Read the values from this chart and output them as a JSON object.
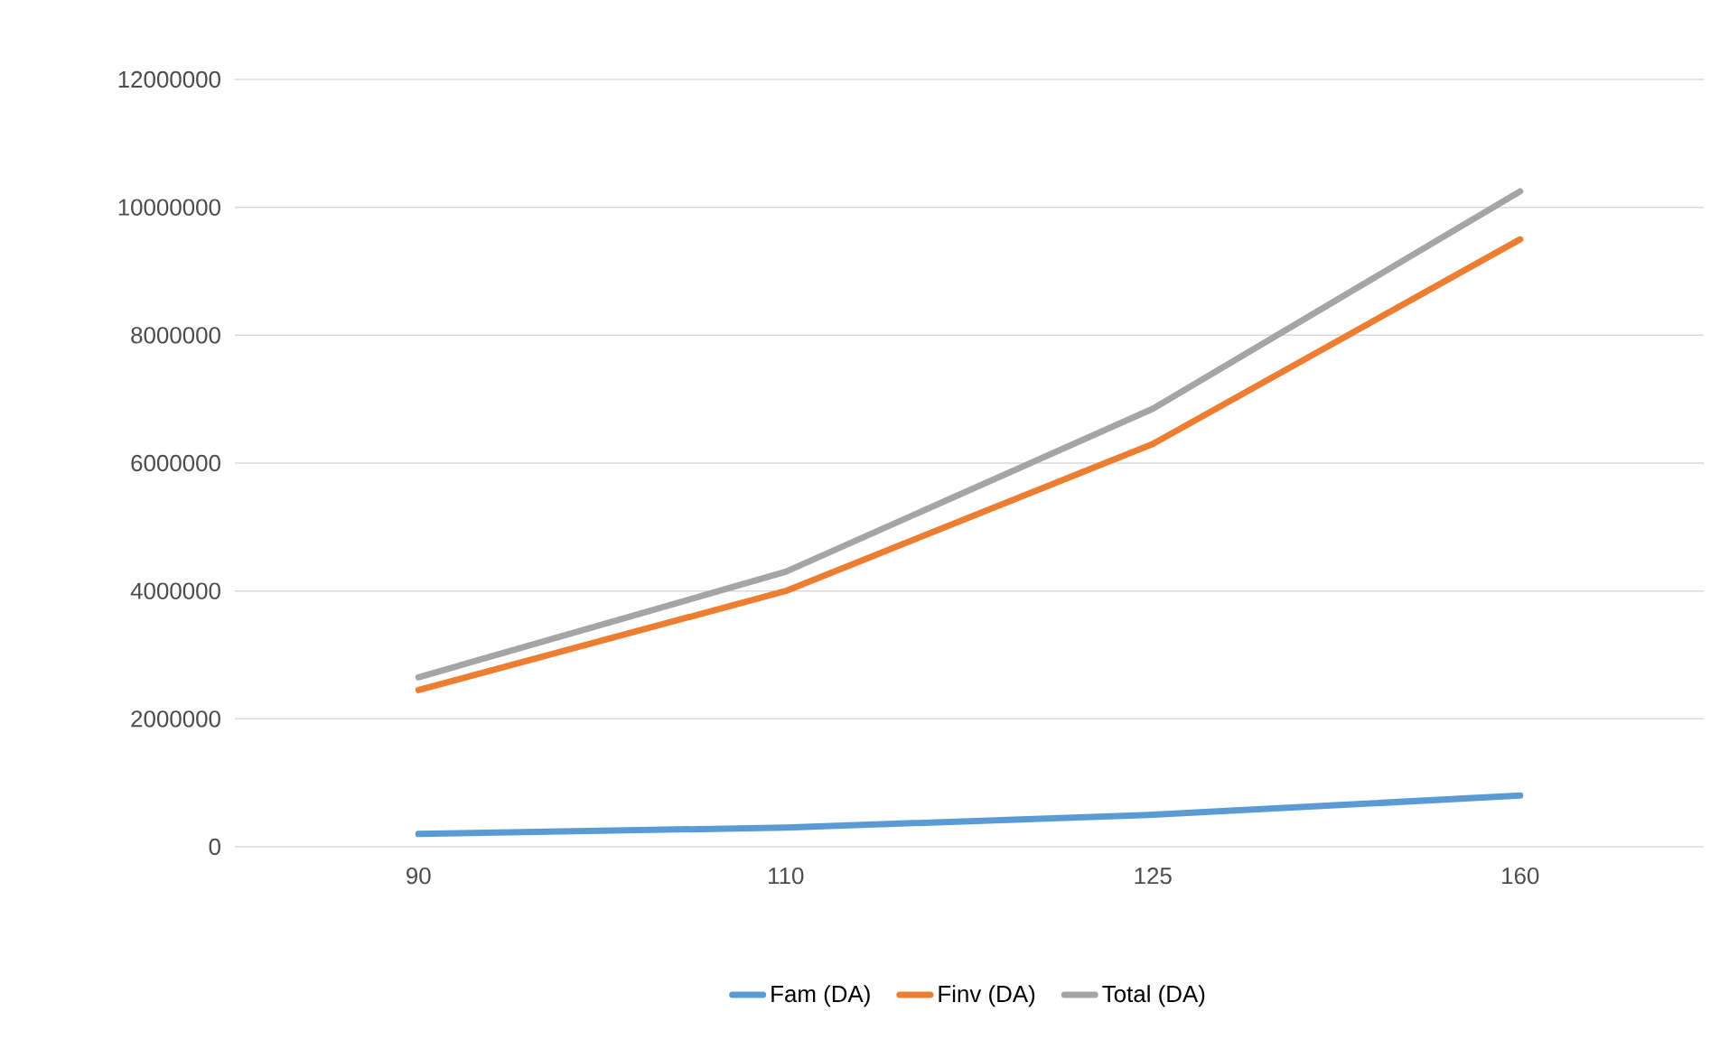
{
  "chart_data": {
    "type": "line",
    "categories": [
      "90",
      "110",
      "125",
      "160"
    ],
    "series": [
      {
        "name": "Fam (DA)",
        "color": "#5b9bd5",
        "values": [
          200000,
          300000,
          500000,
          800000
        ]
      },
      {
        "name": "Finv (DA)",
        "color": "#ed7d31",
        "values": [
          2450000,
          4000000,
          6300000,
          9500000
        ]
      },
      {
        "name": "Total (DA)",
        "color": "#a5a5a5",
        "values": [
          2650000,
          4300000,
          6850000,
          10250000
        ]
      }
    ],
    "ylim": [
      0,
      12000000
    ],
    "yticks": [
      0,
      2000000,
      4000000,
      6000000,
      8000000,
      10000000,
      12000000
    ],
    "grid": "y",
    "legend": "bottom",
    "marker": "none",
    "line_style": "solid"
  }
}
